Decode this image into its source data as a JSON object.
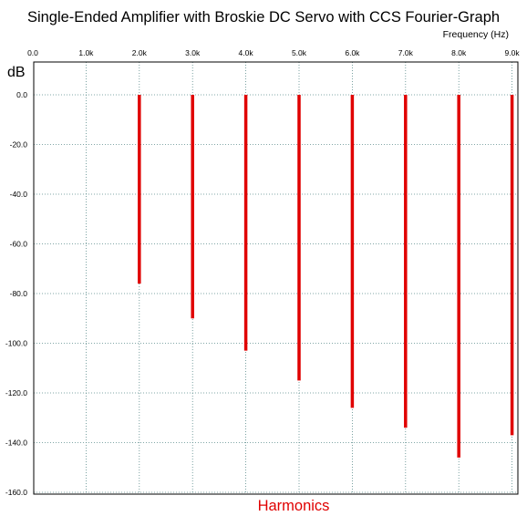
{
  "chart_data": {
    "type": "bar",
    "title": "Single-Ended Amplifier with Broskie DC Servo with CCS Fourier-Graph",
    "xlabel": "Frequency  (Hz)",
    "ylabel": "dB",
    "bottom_caption": "Harmonics",
    "x_ticks": [
      "0.0",
      "1.0k",
      "2.0k",
      "3.0k",
      "4.0k",
      "5.0k",
      "6.0k",
      "7.0k",
      "8.0k",
      "9.0k"
    ],
    "y_ticks": [
      "0.0",
      "-20.0",
      "-40.0",
      "-60.0",
      "-80.0",
      "-100.0",
      "-120.0",
      "-140.0",
      "-160.0"
    ],
    "xlim": [
      0,
      9000
    ],
    "ylim": [
      -160,
      0
    ],
    "grid": true,
    "series": [
      {
        "x": [
          2000,
          3000,
          4000,
          5000,
          6000,
          7000,
          8000,
          9000
        ],
        "values": [
          -76,
          -90,
          -103,
          -115,
          -126,
          -134,
          -146,
          -137
        ]
      }
    ],
    "bar_color": "#e00000"
  }
}
